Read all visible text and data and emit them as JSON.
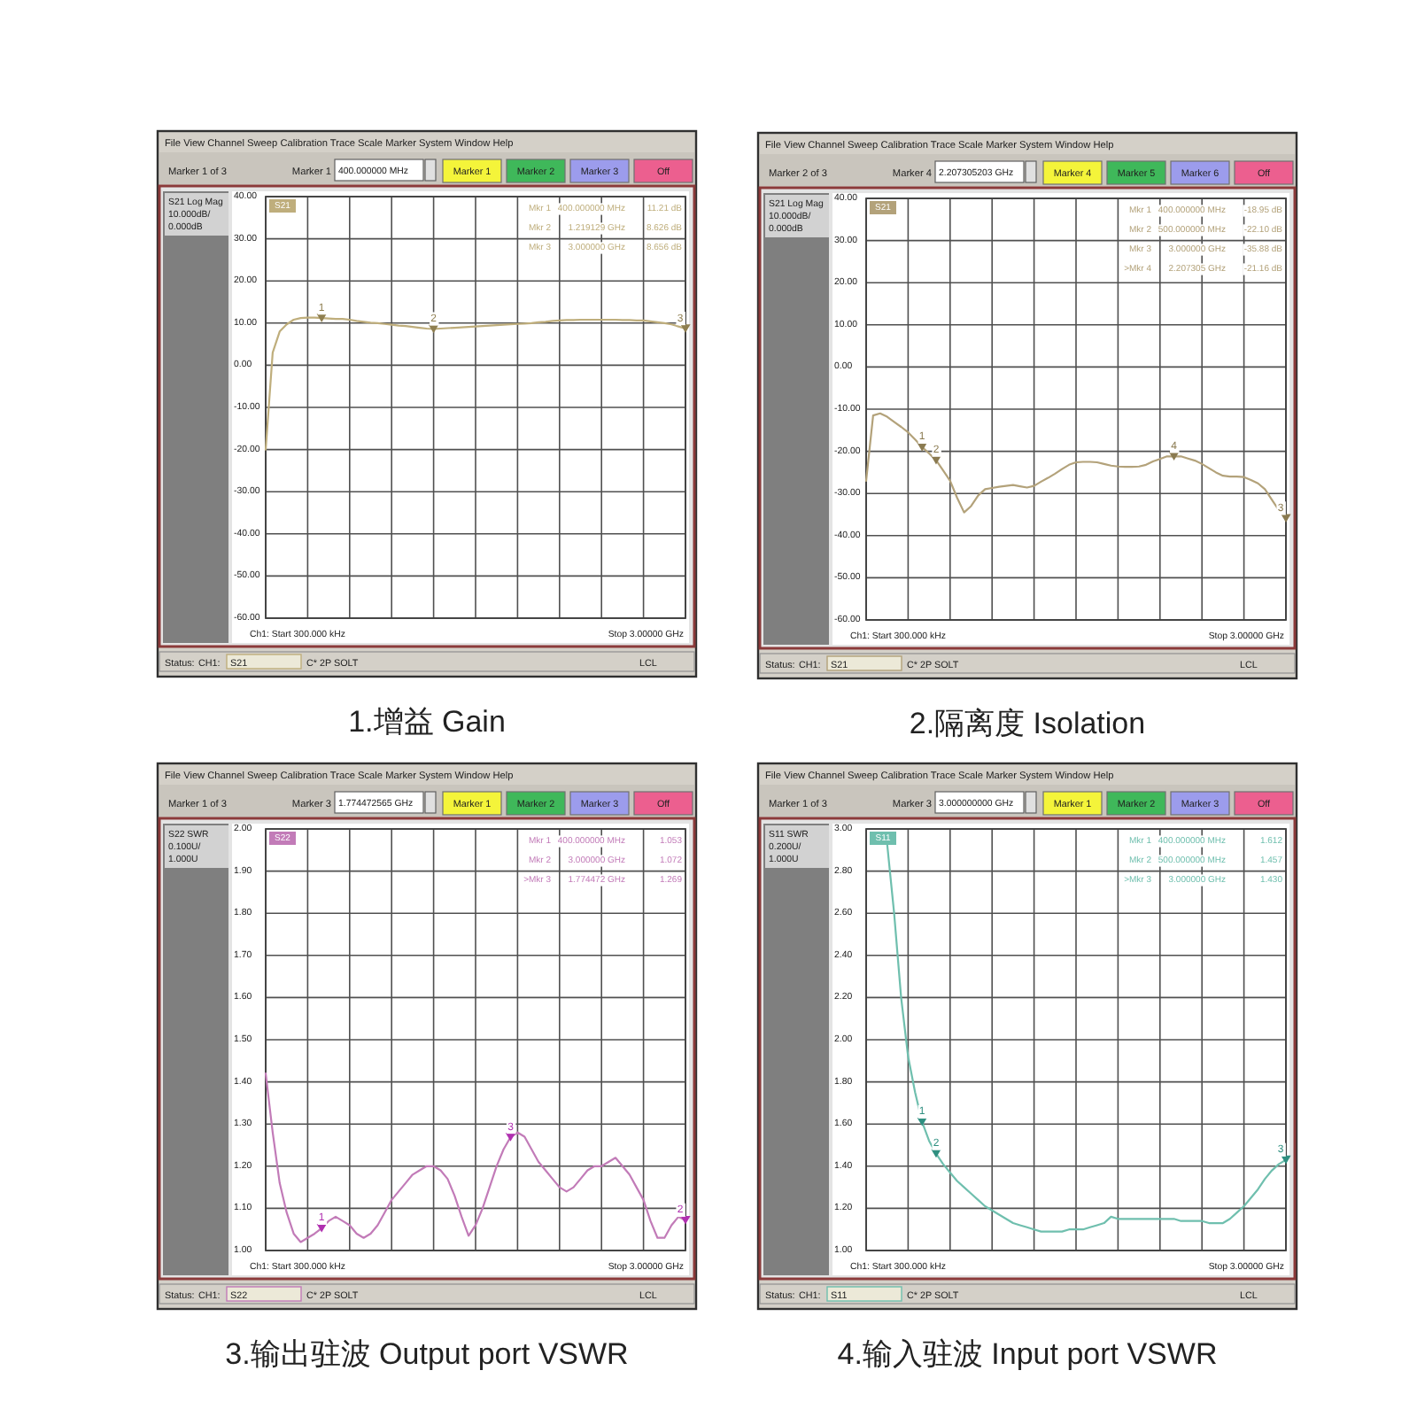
{
  "chart_data": [
    {
      "type": "line",
      "title": "1.增益 Gain",
      "categories": [
        null,
        null,
        null,
        null,
        null,
        null,
        null,
        null,
        null,
        null,
        null,
        null,
        null,
        null,
        null,
        null,
        null,
        null,
        null,
        null,
        null,
        null,
        null,
        null,
        null,
        null,
        null,
        null,
        null,
        null,
        null,
        null,
        null,
        null,
        null,
        null,
        null,
        null,
        null,
        null,
        null,
        null,
        null,
        null,
        null,
        null,
        null,
        null,
        null,
        null,
        null,
        null,
        null,
        null,
        null,
        null,
        null,
        null,
        null,
        null,
        null
      ],
      "series": [
        {
          "color": "#bfae7c",
          "values": [
            -20,
            3,
            8,
            9.7,
            10.8,
            11.2,
            11.3,
            11.3,
            11.2,
            11.1,
            11.0,
            11.0,
            10.8,
            10.5,
            10.3,
            10.1,
            10.0,
            9.8,
            9.6,
            9.4,
            9.3,
            9.1,
            8.9,
            8.7,
            8.6,
            8.7,
            8.8,
            8.9,
            9.0,
            9.1,
            9.2,
            9.3,
            9.4,
            9.5,
            9.6,
            9.7,
            9.8,
            9.9,
            10.0,
            10.2,
            10.3,
            10.5,
            10.6,
            10.7,
            10.7,
            10.8,
            10.8,
            10.8,
            10.8,
            10.8,
            10.8,
            10.7,
            10.7,
            10.6,
            10.6,
            10.4,
            10.2,
            10.0,
            9.7,
            9.2,
            8.7
          ]
        },
        {
          "type": "scatter",
          "name": "1",
          "color": "#8f7f50",
          "marker": "triangle",
          "values": [
            null,
            null,
            null,
            null,
            null,
            null,
            null,
            null,
            11.2,
            null,
            null,
            null,
            null,
            null,
            null,
            null,
            null,
            null,
            null,
            null,
            null,
            null,
            null,
            null,
            null,
            null,
            null,
            null,
            null,
            null,
            null,
            null,
            null,
            null,
            null,
            null,
            null,
            null,
            null,
            null,
            null,
            null,
            null,
            null,
            null,
            null,
            null,
            null,
            null,
            null,
            null,
            null,
            null,
            null,
            null,
            null,
            null,
            null,
            null,
            null,
            null
          ]
        },
        {
          "type": "scatter",
          "name": "2",
          "color": "#8f7f50",
          "marker": "triangle",
          "values": [
            null,
            null,
            null,
            null,
            null,
            null,
            null,
            null,
            null,
            null,
            null,
            null,
            null,
            null,
            null,
            null,
            null,
            null,
            null,
            null,
            null,
            null,
            null,
            null,
            8.6,
            null,
            null,
            null,
            null,
            null,
            null,
            null,
            null,
            null,
            null,
            null,
            null,
            null,
            null,
            null,
            null,
            null,
            null,
            null,
            null,
            null,
            null,
            null,
            null,
            null,
            null,
            null,
            null,
            null,
            null,
            null,
            null,
            null,
            null,
            null,
            null
          ]
        },
        {
          "type": "scatter",
          "name": "3",
          "color": "#8f7f50",
          "marker": "triangle",
          "values": [
            null,
            null,
            null,
            null,
            null,
            null,
            null,
            null,
            null,
            null,
            null,
            null,
            null,
            null,
            null,
            null,
            null,
            null,
            null,
            null,
            null,
            null,
            null,
            null,
            null,
            null,
            null,
            null,
            null,
            null,
            null,
            null,
            null,
            null,
            null,
            null,
            null,
            null,
            null,
            null,
            null,
            null,
            null,
            null,
            null,
            null,
            null,
            null,
            null,
            null,
            null,
            null,
            null,
            null,
            null,
            null,
            null,
            null,
            null,
            null,
            8.7
          ]
        }
      ],
      "ylim": [
        -60,
        40
      ],
      "yticks": [
        {
          "value": 40,
          "label": "40.00"
        },
        {
          "value": 30,
          "label": "30.00"
        },
        {
          "value": 20,
          "label": "20.00"
        },
        {
          "value": 10,
          "label": "10.00"
        },
        {
          "value": 0,
          "label": "0.00"
        },
        {
          "value": -10,
          "label": "-10.00"
        },
        {
          "value": -20,
          "label": "-20.00"
        },
        {
          "value": -30,
          "label": "-30.00"
        },
        {
          "value": -40,
          "label": "-40.00"
        },
        {
          "value": -50,
          "label": "-50.00"
        },
        {
          "value": -60,
          "label": "-60.00"
        }
      ],
      "grid": true,
      "tick_labels": "y",
      "annotations": [
        "File View Channel Sweep Calibration Trace Scale Marker System Window Help",
        "Marker 1 of 3",
        "Marker 1",
        "400.000000 MHz",
        "Marker 1",
        "Marker 2",
        "Marker 3",
        "Off",
        "S21 Log Mag",
        "10.000dB/",
        "0.000dB",
        "S21",
        "Mkr 1",
        "400.000000 MHz",
        "11.21 dB",
        "Mkr 2",
        "1.219129 GHz",
        "8.626 dB",
        "Mkr 3",
        "3.000000 GHz",
        "8.656 dB",
        "Ch1: Start 300.000 kHz",
        "Stop 3.00000 GHz",
        "Status:",
        "CH1:",
        "S21",
        "C* 2P SOLT",
        "LCL"
      ]
    },
    {
      "type": "line",
      "title": "2.隔离度 Isolation",
      "categories": [
        null,
        null,
        null,
        null,
        null,
        null,
        null,
        null,
        null,
        null,
        null,
        null,
        null,
        null,
        null,
        null,
        null,
        null,
        null,
        null,
        null,
        null,
        null,
        null,
        null,
        null,
        null,
        null,
        null,
        null,
        null,
        null,
        null,
        null,
        null,
        null,
        null,
        null,
        null,
        null,
        null,
        null,
        null,
        null,
        null,
        null,
        null,
        null,
        null,
        null,
        null,
        null,
        null,
        null,
        null,
        null,
        null,
        null,
        null,
        null,
        null
      ],
      "series": [
        {
          "color": "#b3a27a",
          "values": [
            -27,
            -11.5,
            -11,
            -11.8,
            -13,
            -14.2,
            -15.5,
            -17.2,
            -19,
            -20.5,
            -22.1,
            -24.5,
            -27,
            -31,
            -34.5,
            -33,
            -30.5,
            -29,
            -28.7,
            -28.4,
            -28.2,
            -28,
            -28.3,
            -28.6,
            -28.2,
            -27.2,
            -26.3,
            -25.3,
            -24.2,
            -23.2,
            -22.6,
            -22.5,
            -22.5,
            -22.6,
            -23,
            -23.4,
            -23.6,
            -23.7,
            -23.7,
            -23.6,
            -23.2,
            -22.4,
            -21.8,
            -21.2,
            -21.2,
            -21.2,
            -21.7,
            -22.2,
            -23,
            -24,
            -25,
            -25.8,
            -26,
            -26,
            -26.1,
            -26.8,
            -27.6,
            -29,
            -31.5,
            -34,
            -35.9
          ]
        },
        {
          "type": "scatter",
          "name": "1",
          "color": "#8a7a50",
          "marker": "triangle",
          "values": [
            null,
            null,
            null,
            null,
            null,
            null,
            null,
            null,
            -19,
            null,
            null,
            null,
            null,
            null,
            null,
            null,
            null,
            null,
            null,
            null,
            null,
            null,
            null,
            null,
            null,
            null,
            null,
            null,
            null,
            null,
            null,
            null,
            null,
            null,
            null,
            null,
            null,
            null,
            null,
            null,
            null,
            null,
            null,
            null,
            null,
            null,
            null,
            null,
            null,
            null,
            null,
            null,
            null,
            null,
            null,
            null,
            null,
            null,
            null,
            null,
            null
          ]
        },
        {
          "type": "scatter",
          "name": "2",
          "color": "#8a7a50",
          "marker": "triangle",
          "values": [
            null,
            null,
            null,
            null,
            null,
            null,
            null,
            null,
            null,
            null,
            -22.1,
            null,
            null,
            null,
            null,
            null,
            null,
            null,
            null,
            null,
            null,
            null,
            null,
            null,
            null,
            null,
            null,
            null,
            null,
            null,
            null,
            null,
            null,
            null,
            null,
            null,
            null,
            null,
            null,
            null,
            null,
            null,
            null,
            null,
            null,
            null,
            null,
            null,
            null,
            null,
            null,
            null,
            null,
            null,
            null,
            null,
            null,
            null,
            null,
            null,
            null
          ]
        },
        {
          "type": "scatter",
          "name": "3",
          "color": "#8a7a50",
          "marker": "triangle",
          "values": [
            null,
            null,
            null,
            null,
            null,
            null,
            null,
            null,
            null,
            null,
            null,
            null,
            null,
            null,
            null,
            null,
            null,
            null,
            null,
            null,
            null,
            null,
            null,
            null,
            null,
            null,
            null,
            null,
            null,
            null,
            null,
            null,
            null,
            null,
            null,
            null,
            null,
            null,
            null,
            null,
            null,
            null,
            null,
            null,
            null,
            null,
            null,
            null,
            null,
            null,
            null,
            null,
            null,
            null,
            null,
            null,
            null,
            null,
            null,
            null,
            -35.9
          ]
        },
        {
          "type": "scatter",
          "name": "4",
          "color": "#8a7a50",
          "marker": "triangle",
          "values": [
            null,
            null,
            null,
            null,
            null,
            null,
            null,
            null,
            null,
            null,
            null,
            null,
            null,
            null,
            null,
            null,
            null,
            null,
            null,
            null,
            null,
            null,
            null,
            null,
            null,
            null,
            null,
            null,
            null,
            null,
            null,
            null,
            null,
            null,
            null,
            null,
            null,
            null,
            null,
            null,
            null,
            null,
            null,
            null,
            -21.2,
            null,
            null,
            null,
            null,
            null,
            null,
            null,
            null,
            null,
            null,
            null,
            null,
            null,
            null,
            null,
            null
          ]
        }
      ],
      "ylim": [
        -60,
        40
      ],
      "yticks": [
        {
          "value": 40,
          "label": "40.00"
        },
        {
          "value": 30,
          "label": "30.00"
        },
        {
          "value": 20,
          "label": "20.00"
        },
        {
          "value": 10,
          "label": "10.00"
        },
        {
          "value": 0,
          "label": "0.00"
        },
        {
          "value": -10,
          "label": "-10.00"
        },
        {
          "value": -20,
          "label": "-20.00"
        },
        {
          "value": -30,
          "label": "-30.00"
        },
        {
          "value": -40,
          "label": "-40.00"
        },
        {
          "value": -50,
          "label": "-50.00"
        },
        {
          "value": -60,
          "label": "-60.00"
        }
      ],
      "grid": true,
      "tick_labels": "y",
      "annotations": [
        "File View Channel Sweep Calibration Trace Scale Marker System Window Help",
        "Marker 2 of 3",
        "Marker 4",
        "2.207305203 GHz",
        "Marker 4",
        "Marker 5",
        "Marker 6",
        "Off",
        "S21 Log Mag",
        "10.000dB/",
        "0.000dB",
        "S21",
        "Mkr 1",
        "400.000000 MHz",
        "-18.95 dB",
        "Mkr 2",
        "500.000000 MHz",
        "-22.10 dB",
        "Mkr 3",
        "3.000000 GHz",
        "-35.88 dB",
        ">Mkr 4",
        "2.207305 GHz",
        "-21.16 dB",
        "Ch1: Start 300.000 kHz",
        "Stop 3.00000 GHz",
        "Status:",
        "CH1:",
        "S21",
        "C* 2P SOLT",
        "LCL"
      ]
    },
    {
      "type": "line",
      "title": "3.输出驻波 Output port VSWR",
      "categories": [
        null,
        null,
        null,
        null,
        null,
        null,
        null,
        null,
        null,
        null,
        null,
        null,
        null,
        null,
        null,
        null,
        null,
        null,
        null,
        null,
        null,
        null,
        null,
        null,
        null,
        null,
        null,
        null,
        null,
        null,
        null,
        null,
        null,
        null,
        null,
        null,
        null,
        null,
        null,
        null,
        null,
        null,
        null,
        null,
        null,
        null,
        null,
        null,
        null,
        null,
        null,
        null,
        null,
        null,
        null,
        null,
        null,
        null,
        null,
        null,
        null
      ],
      "series": [
        {
          "color": "#c27bb8",
          "values": [
            1.42,
            1.28,
            1.16,
            1.09,
            1.04,
            1.02,
            1.03,
            1.04,
            1.053,
            1.07,
            1.08,
            1.07,
            1.06,
            1.04,
            1.03,
            1.04,
            1.06,
            1.09,
            1.12,
            1.14,
            1.16,
            1.18,
            1.19,
            1.2,
            1.2,
            1.19,
            1.17,
            1.13,
            1.08,
            1.035,
            1.06,
            1.1,
            1.15,
            1.2,
            1.24,
            1.269,
            1.28,
            1.27,
            1.24,
            1.21,
            1.19,
            1.17,
            1.15,
            1.14,
            1.15,
            1.17,
            1.19,
            1.2,
            1.2,
            1.21,
            1.22,
            1.2,
            1.18,
            1.15,
            1.12,
            1.07,
            1.03,
            1.03,
            1.06,
            1.08,
            1.072
          ]
        },
        {
          "type": "scatter",
          "name": "1",
          "color": "#b030b0",
          "marker": "triangle",
          "values": [
            null,
            null,
            null,
            null,
            null,
            null,
            null,
            null,
            1.053,
            null,
            null,
            null,
            null,
            null,
            null,
            null,
            null,
            null,
            null,
            null,
            null,
            null,
            null,
            null,
            null,
            null,
            null,
            null,
            null,
            null,
            null,
            null,
            null,
            null,
            null,
            null,
            null,
            null,
            null,
            null,
            null,
            null,
            null,
            null,
            null,
            null,
            null,
            null,
            null,
            null,
            null,
            null,
            null,
            null,
            null,
            null,
            null,
            null,
            null,
            null,
            null
          ]
        },
        {
          "type": "scatter",
          "name": "2",
          "color": "#b030b0",
          "marker": "triangle",
          "values": [
            null,
            null,
            null,
            null,
            null,
            null,
            null,
            null,
            null,
            null,
            null,
            null,
            null,
            null,
            null,
            null,
            null,
            null,
            null,
            null,
            null,
            null,
            null,
            null,
            null,
            null,
            null,
            null,
            null,
            null,
            null,
            null,
            null,
            null,
            null,
            null,
            null,
            null,
            null,
            null,
            null,
            null,
            null,
            null,
            null,
            null,
            null,
            null,
            null,
            null,
            null,
            null,
            null,
            null,
            null,
            null,
            null,
            null,
            null,
            null,
            1.072
          ]
        },
        {
          "type": "scatter",
          "name": "3",
          "color": "#b030b0",
          "marker": "triangle",
          "values": [
            null,
            null,
            null,
            null,
            null,
            null,
            null,
            null,
            null,
            null,
            null,
            null,
            null,
            null,
            null,
            null,
            null,
            null,
            null,
            null,
            null,
            null,
            null,
            null,
            null,
            null,
            null,
            null,
            null,
            null,
            null,
            null,
            null,
            null,
            null,
            1.269,
            null,
            null,
            null,
            null,
            null,
            null,
            null,
            null,
            null,
            null,
            null,
            null,
            null,
            null,
            null,
            null,
            null,
            null,
            null,
            null,
            null,
            null,
            null,
            null,
            null
          ]
        }
      ],
      "ylim": [
        1,
        2
      ],
      "yticks": [
        {
          "value": 2,
          "label": "2.00"
        },
        {
          "value": 1.9,
          "label": "1.90"
        },
        {
          "value": 1.8,
          "label": "1.80"
        },
        {
          "value": 1.7,
          "label": "1.70"
        },
        {
          "value": 1.6,
          "label": "1.60"
        },
        {
          "value": 1.5,
          "label": "1.50"
        },
        {
          "value": 1.4,
          "label": "1.40"
        },
        {
          "value": 1.3,
          "label": "1.30"
        },
        {
          "value": 1.2,
          "label": "1.20"
        },
        {
          "value": 1.1,
          "label": "1.10"
        },
        {
          "value": 1,
          "label": "1.00"
        }
      ],
      "grid": true,
      "tick_labels": "y",
      "annotations": [
        "File View Channel Sweep Calibration Trace Scale Marker System Window Help",
        "Marker 1 of 3",
        "Marker 3",
        "1.774472565 GHz",
        "Marker 1",
        "Marker 2",
        "Marker 3",
        "Off",
        "S22 SWR",
        "0.100U/",
        "1.000U",
        "S22",
        "Mkr 1",
        "400.000000 MHz",
        "1.053",
        "Mkr 2",
        "3.000000 GHz",
        "1.072",
        ">Mkr 3",
        "1.774472 GHz",
        "1.269",
        "Ch1: Start 300.000 kHz",
        "Stop 3.00000 GHz",
        "Status:",
        "CH1:",
        "S22",
        "C* 2P SOLT",
        "LCL"
      ]
    },
    {
      "type": "line",
      "title": "4.输入驻波 Input port VSWR",
      "categories": [
        null,
        null,
        null,
        null,
        null,
        null,
        null,
        null,
        null,
        null,
        null,
        null,
        null,
        null,
        null,
        null,
        null,
        null,
        null,
        null,
        null,
        null,
        null,
        null,
        null,
        null,
        null,
        null,
        null,
        null,
        null,
        null,
        null,
        null,
        null,
        null,
        null,
        null,
        null,
        null,
        null,
        null,
        null,
        null,
        null,
        null,
        null,
        null,
        null,
        null,
        null,
        null,
        null,
        null,
        null,
        null,
        null,
        null,
        null,
        null,
        null
      ],
      "series": [
        {
          "color": "#6fbfae",
          "values": [
            null,
            null,
            null,
            2.93,
            2.6,
            2.2,
            1.92,
            1.75,
            1.61,
            1.52,
            1.46,
            1.41,
            1.37,
            1.33,
            1.3,
            1.27,
            1.24,
            1.21,
            1.19,
            1.17,
            1.15,
            1.13,
            1.12,
            1.11,
            1.1,
            1.09,
            1.09,
            1.09,
            1.09,
            1.1,
            1.1,
            1.1,
            1.11,
            1.12,
            1.13,
            1.16,
            1.15,
            1.15,
            1.15,
            1.15,
            1.15,
            1.15,
            1.15,
            1.15,
            1.15,
            1.14,
            1.14,
            1.14,
            1.14,
            1.13,
            1.13,
            1.13,
            1.15,
            1.18,
            1.21,
            1.25,
            1.29,
            1.34,
            1.38,
            1.41,
            1.43
          ]
        },
        {
          "type": "scatter",
          "name": "1",
          "color": "#2f8f80",
          "marker": "triangle",
          "values": [
            null,
            null,
            null,
            null,
            null,
            null,
            null,
            null,
            1.61,
            null,
            null,
            null,
            null,
            null,
            null,
            null,
            null,
            null,
            null,
            null,
            null,
            null,
            null,
            null,
            null,
            null,
            null,
            null,
            null,
            null,
            null,
            null,
            null,
            null,
            null,
            null,
            null,
            null,
            null,
            null,
            null,
            null,
            null,
            null,
            null,
            null,
            null,
            null,
            null,
            null,
            null,
            null,
            null,
            null,
            null,
            null,
            null,
            null,
            null,
            null,
            null
          ]
        },
        {
          "type": "scatter",
          "name": "2",
          "color": "#2f8f80",
          "marker": "triangle",
          "values": [
            null,
            null,
            null,
            null,
            null,
            null,
            null,
            null,
            null,
            null,
            1.46,
            null,
            null,
            null,
            null,
            null,
            null,
            null,
            null,
            null,
            null,
            null,
            null,
            null,
            null,
            null,
            null,
            null,
            null,
            null,
            null,
            null,
            null,
            null,
            null,
            null,
            null,
            null,
            null,
            null,
            null,
            null,
            null,
            null,
            null,
            null,
            null,
            null,
            null,
            null,
            null,
            null,
            null,
            null,
            null,
            null,
            null,
            null,
            null,
            null,
            null
          ]
        },
        {
          "type": "scatter",
          "name": "3",
          "color": "#2f8f80",
          "marker": "triangle",
          "values": [
            null,
            null,
            null,
            null,
            null,
            null,
            null,
            null,
            null,
            null,
            null,
            null,
            null,
            null,
            null,
            null,
            null,
            null,
            null,
            null,
            null,
            null,
            null,
            null,
            null,
            null,
            null,
            null,
            null,
            null,
            null,
            null,
            null,
            null,
            null,
            null,
            null,
            null,
            null,
            null,
            null,
            null,
            null,
            null,
            null,
            null,
            null,
            null,
            null,
            null,
            null,
            null,
            null,
            null,
            null,
            null,
            null,
            null,
            null,
            null,
            1.43
          ]
        }
      ],
      "ylim": [
        1,
        3
      ],
      "yticks": [
        {
          "value": 3,
          "label": "3.00"
        },
        {
          "value": 2.8,
          "label": "2.80"
        },
        {
          "value": 2.6,
          "label": "2.60"
        },
        {
          "value": 2.4,
          "label": "2.40"
        },
        {
          "value": 2.2,
          "label": "2.20"
        },
        {
          "value": 2,
          "label": "2.00"
        },
        {
          "value": 1.8,
          "label": "1.80"
        },
        {
          "value": 1.6,
          "label": "1.60"
        },
        {
          "value": 1.4,
          "label": "1.40"
        },
        {
          "value": 1.2,
          "label": "1.20"
        },
        {
          "value": 1,
          "label": "1.00"
        }
      ],
      "grid": true,
      "tick_labels": "y",
      "annotations": [
        "File View Channel Sweep Calibration Trace Scale Marker System Window Help",
        "Marker 1 of 3",
        "Marker 3",
        "3.000000000 GHz",
        "Marker 1",
        "Marker 2",
        "Marker 3",
        "Off",
        "S11 SWR",
        "0.200U/",
        "1.000U",
        "S11",
        "Mkr 1",
        "400.000000 MHz",
        "1.612",
        "Mkr 2",
        "500.000000 MHz",
        "1.457",
        ">Mkr 3",
        "3.000000 GHz",
        "1.430",
        "Ch1: Start 300.000 kHz",
        "Stop 3.00000 GHz",
        "Status:",
        "CH1:",
        "S11",
        "C* 2P SOLT",
        "LCL"
      ]
    }
  ]
}
